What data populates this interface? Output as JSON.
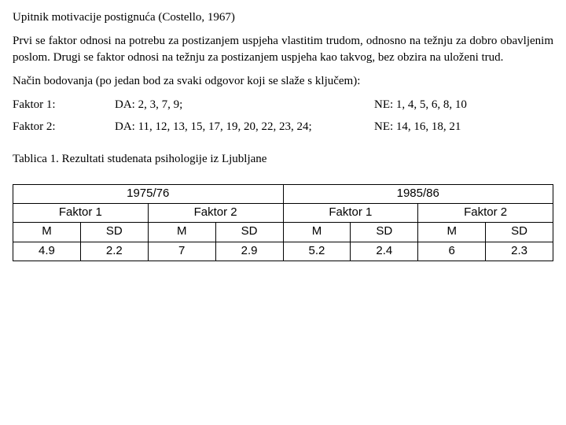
{
  "title": "Upitnik motivacije postignuća (Costello, 1967)",
  "paragraph": "Prvi se faktor odnosi na potrebu za postizanjem uspjeha vlastitim trudom, odnosno na težnju za dobro obavljenim poslom. Drugi se faktor odnosi na težnju za postizanjem uspjeha kao takvog, bez obzira na uloženi trud.",
  "scoring_intro": "Način bodovanja (po jedan bod za svaki odgovor koji se slaže s ključem):",
  "scoring": {
    "rows": [
      {
        "label": "Faktor 1:",
        "da": "DA: 2, 3, 7, 9;",
        "ne": "NE: 1, 4, 5, 6, 8, 10"
      },
      {
        "label": "Faktor 2:",
        "da": "DA: 11, 12, 13, 15, 17, 19, 20, 22, 23, 24;",
        "ne": "NE: 14, 16, 18, 21"
      }
    ]
  },
  "table_caption": "Tablica 1. Rezultati studenata psihologije iz Ljubljane",
  "table": {
    "type": "table",
    "background_color": "#ffffff",
    "border_color": "#000000",
    "font_family": "Arial",
    "font_size_pt": 11,
    "years": [
      "1975/76",
      "1985/86"
    ],
    "factors": [
      "Faktor 1",
      "Faktor 2",
      "Faktor 1",
      "Faktor 2"
    ],
    "stats": [
      "M",
      "SD",
      "M",
      "SD",
      "M",
      "SD",
      "M",
      "SD"
    ],
    "values": [
      "4.9",
      "2.2",
      "7",
      "2.9",
      "5.2",
      "2.4",
      "6",
      "2.3"
    ]
  }
}
